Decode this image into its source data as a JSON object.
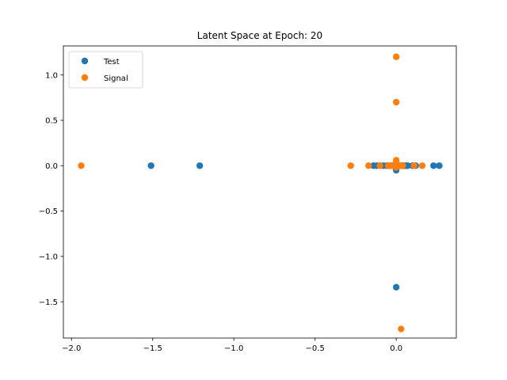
{
  "chart_data": {
    "type": "scatter",
    "title": "Latent Space at Epoch: 20",
    "xlabel": "",
    "ylabel": "",
    "xlim": [
      -2.05,
      0.37
    ],
    "ylim": [
      -1.9,
      1.32
    ],
    "x_ticks": [
      -2.0,
      -1.5,
      -1.0,
      -0.5,
      0.0
    ],
    "x_tick_labels": [
      "−2.0",
      "−1.5",
      "−1.0",
      "−0.5",
      "0.0"
    ],
    "y_ticks": [
      1.0,
      0.5,
      0.0,
      -0.5,
      -1.0,
      -1.5
    ],
    "y_tick_labels": [
      "1.0",
      "0.5",
      "0.0",
      "−0.5",
      "−1.0",
      "−1.5"
    ],
    "grid": false,
    "legend_position": "top-left",
    "series": [
      {
        "name": "Test",
        "color": "#1f77b4",
        "points": [
          [
            -1.51,
            0.0
          ],
          [
            -1.21,
            0.0
          ],
          [
            -0.14,
            0.0
          ],
          [
            -0.12,
            0.0
          ],
          [
            -0.1,
            0.0
          ],
          [
            -0.08,
            0.0
          ],
          [
            -0.06,
            0.0
          ],
          [
            -0.04,
            0.0
          ],
          [
            -0.03,
            0.0
          ],
          [
            -0.02,
            0.0
          ],
          [
            -0.01,
            0.0
          ],
          [
            0.0,
            0.0
          ],
          [
            0.01,
            0.0
          ],
          [
            0.02,
            0.0
          ],
          [
            0.03,
            0.0
          ],
          [
            0.04,
            0.0
          ],
          [
            0.05,
            0.0
          ],
          [
            0.06,
            0.0
          ],
          [
            0.07,
            0.0
          ],
          [
            0.1,
            0.0
          ],
          [
            0.12,
            0.0
          ],
          [
            0.23,
            0.0
          ],
          [
            0.265,
            0.0
          ],
          [
            0.0,
            -0.05
          ],
          [
            0.0,
            0.03
          ],
          [
            0.0,
            -1.34
          ]
        ]
      },
      {
        "name": "Signal",
        "color": "#ff7f0e",
        "points": [
          [
            -1.94,
            0.0
          ],
          [
            -0.28,
            0.0
          ],
          [
            -0.17,
            0.0
          ],
          [
            -0.1,
            0.0
          ],
          [
            -0.05,
            0.0
          ],
          [
            -0.03,
            0.0
          ],
          [
            -0.02,
            0.0
          ],
          [
            -0.01,
            0.0
          ],
          [
            0.0,
            0.0
          ],
          [
            0.01,
            0.0
          ],
          [
            0.02,
            0.0
          ],
          [
            0.03,
            0.0
          ],
          [
            0.04,
            0.0
          ],
          [
            0.11,
            0.0
          ],
          [
            0.16,
            0.0
          ],
          [
            0.0,
            0.06
          ],
          [
            0.0,
            0.04
          ],
          [
            0.0,
            0.02
          ],
          [
            0.0,
            -0.02
          ],
          [
            0.0,
            1.2
          ],
          [
            0.0,
            0.7
          ],
          [
            0.03,
            -1.8
          ]
        ]
      }
    ]
  }
}
